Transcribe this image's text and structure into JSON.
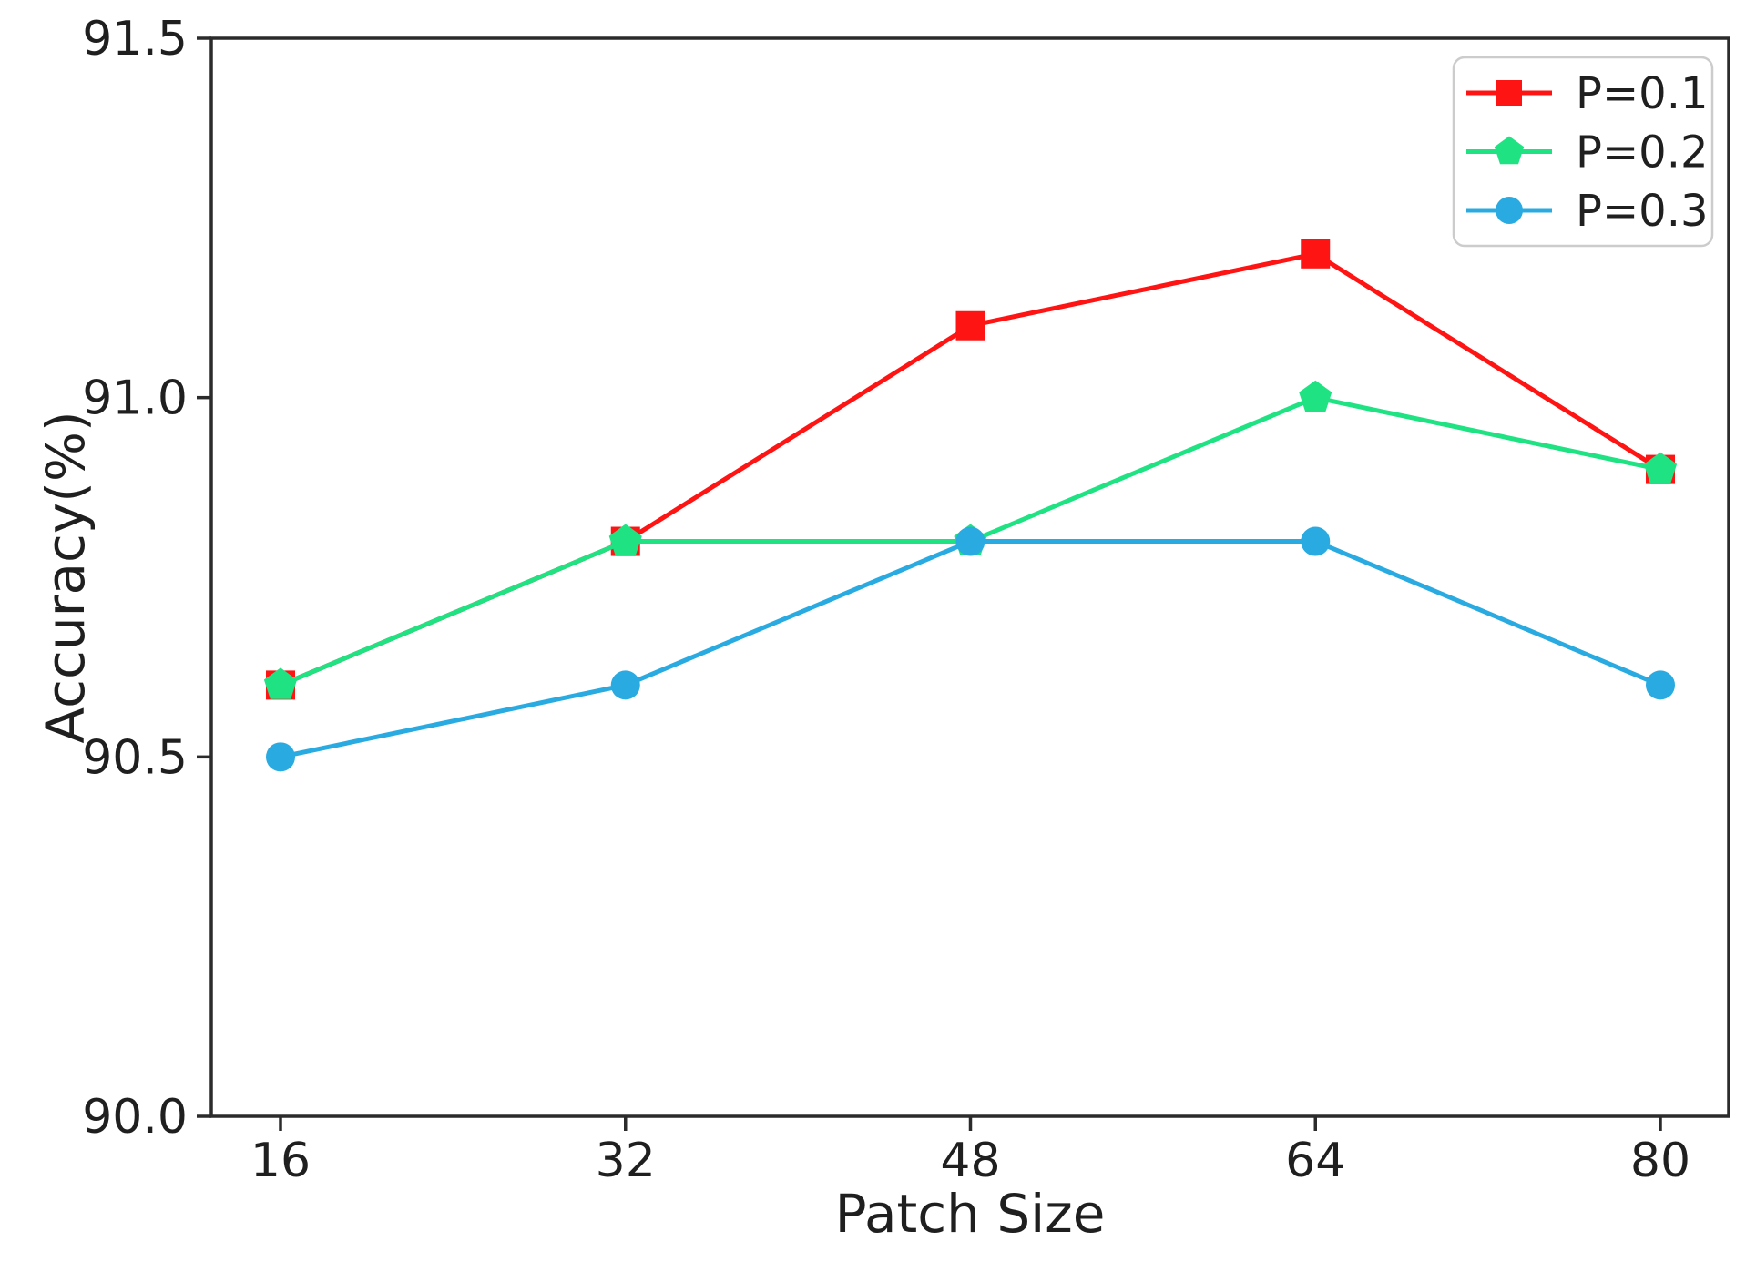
{
  "chart_data": {
    "type": "line",
    "title": "",
    "xlabel": "Patch Size",
    "ylabel": "Accuracy(%)",
    "x": [
      16,
      32,
      48,
      64,
      80
    ],
    "xtick_labels": [
      "16",
      "32",
      "48",
      "64",
      "80"
    ],
    "ytick_values": [
      90.0,
      90.5,
      91.0,
      91.5
    ],
    "ytick_labels": [
      "90.0",
      "90.5",
      "91.0",
      "91.5"
    ],
    "xlim": [
      12.8,
      83.2
    ],
    "ylim": [
      90.0,
      91.5
    ],
    "grid": false,
    "legend_position": "upper-right",
    "series": [
      {
        "name": "P=0.1",
        "marker": "square",
        "color": "#ff1414",
        "values": [
          90.6,
          90.8,
          91.1,
          91.2,
          90.9
        ]
      },
      {
        "name": "P=0.2",
        "marker": "pentagon",
        "color": "#1fe383",
        "values": [
          90.6,
          90.8,
          90.8,
          91.0,
          90.9
        ]
      },
      {
        "name": "P=0.3",
        "marker": "circle",
        "color": "#29abe2",
        "values": [
          90.5,
          90.6,
          90.8,
          90.8,
          90.6
        ]
      }
    ],
    "colors": {
      "axis": "#2b2b2b",
      "text": "#1f1f1f",
      "legend_border": "#cccccc",
      "background": "#ffffff"
    }
  }
}
